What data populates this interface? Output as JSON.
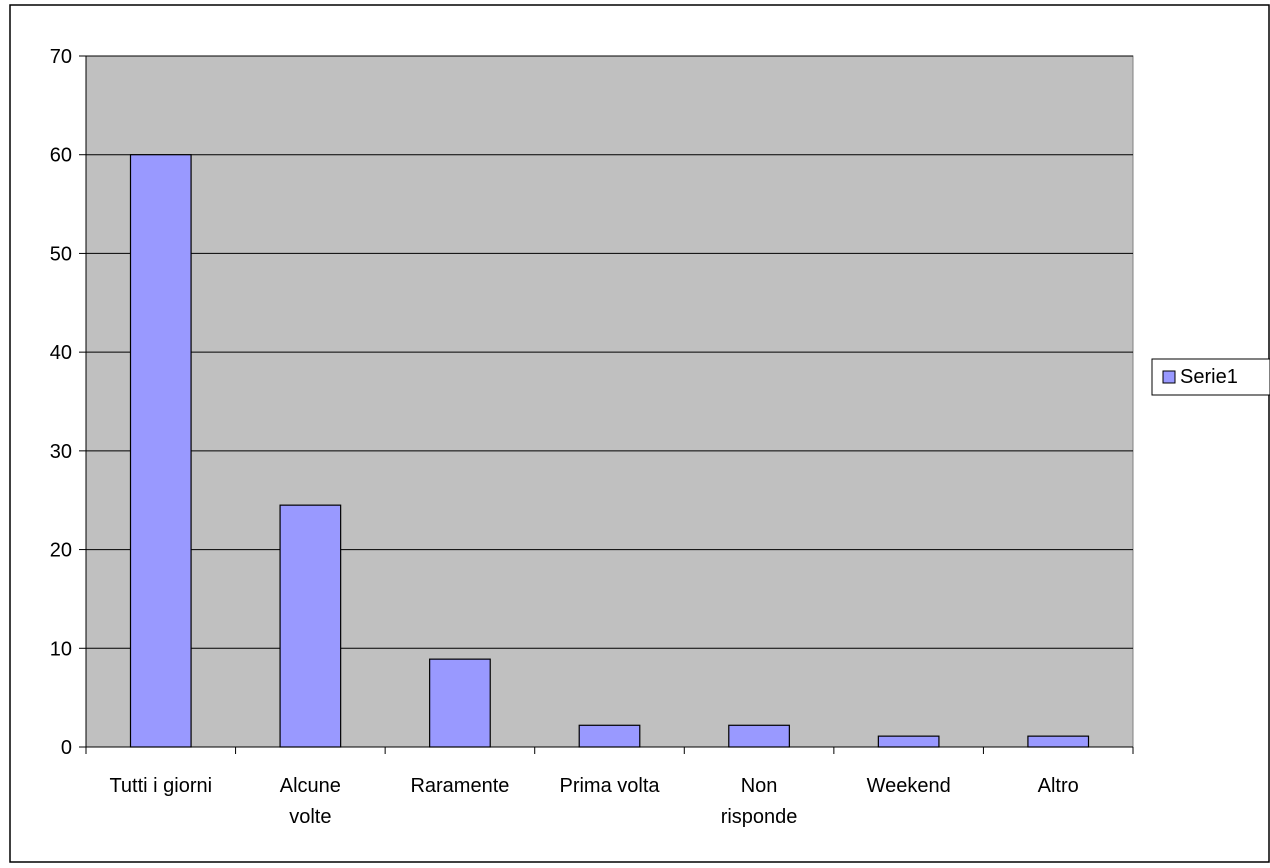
{
  "chart_data": {
    "type": "bar",
    "title": "",
    "xlabel": "",
    "ylabel": "",
    "categories": [
      [
        "Tutti i giorni"
      ],
      [
        "Alcune",
        "volte"
      ],
      [
        "Raramente"
      ],
      [
        "Prima volta"
      ],
      [
        "Non",
        "risponde"
      ],
      [
        "Weekend"
      ],
      [
        "Altro"
      ]
    ],
    "series": [
      {
        "name": "Serie1",
        "values": [
          60,
          24.5,
          8.9,
          2.2,
          2.2,
          1.1,
          1.1
        ]
      }
    ],
    "ylim": [
      0,
      70
    ],
    "yticks": [
      0,
      10,
      20,
      30,
      40,
      50,
      60,
      70
    ],
    "grid": true,
    "legend_position": "right",
    "colors": {
      "plot_background": "#c0c0c0",
      "bar_fill": "#9999ff",
      "bar_stroke": "#000000",
      "gridline": "#000000"
    }
  }
}
